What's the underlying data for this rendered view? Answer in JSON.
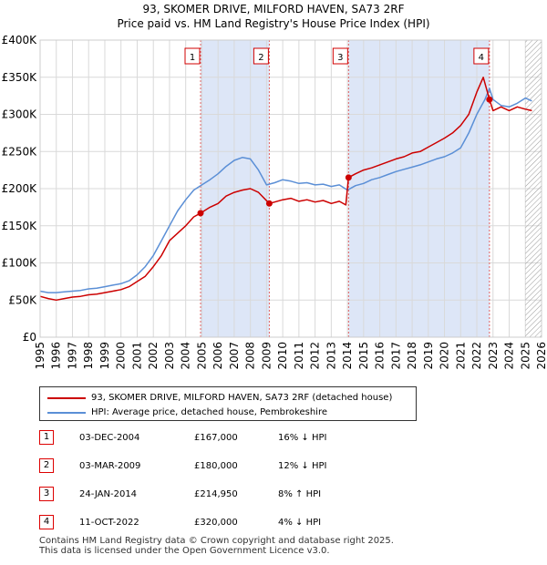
{
  "title_line1": "93, SKOMER DRIVE, MILFORD HAVEN, SA73 2RF",
  "title_line2": "Price paid vs. HM Land Registry's House Price Index (HPI)",
  "colors": {
    "property": "#cc0000",
    "hpi": "#5b8fd6",
    "band": "#dde6f7",
    "marker_border": "#d00000"
  },
  "chart_data": {
    "type": "line",
    "title": "93, SKOMER DRIVE, MILFORD HAVEN, SA73 2RF — Price paid vs. HM Land Registry's House Price Index (HPI)",
    "xlabel": "",
    "ylabel": "",
    "xlim": [
      1995,
      2026
    ],
    "ylim": [
      0,
      400000
    ],
    "x_ticks": [
      1995,
      1996,
      1997,
      1998,
      1999,
      2000,
      2001,
      2002,
      2003,
      2004,
      2005,
      2006,
      2007,
      2008,
      2009,
      2010,
      2011,
      2012,
      2013,
      2014,
      2015,
      2016,
      2017,
      2018,
      2019,
      2020,
      2021,
      2022,
      2023,
      2024,
      2025,
      2026
    ],
    "y_ticks": [
      0,
      50000,
      100000,
      150000,
      200000,
      250000,
      300000,
      350000,
      400000
    ],
    "y_tick_labels": [
      "£0",
      "£50K",
      "£100K",
      "£150K",
      "£200K",
      "£250K",
      "£300K",
      "£350K",
      "£400K"
    ],
    "grid": true,
    "forecast_hatch_from": 2025.0,
    "series": [
      {
        "name": "93, SKOMER DRIVE, MILFORD HAVEN, SA73 2RF (detached house)",
        "x": [
          1995.0,
          1995.5,
          1996.0,
          1996.5,
          1997.0,
          1997.5,
          1998.0,
          1998.5,
          1999.0,
          1999.5,
          2000.0,
          2000.5,
          2001.0,
          2001.5,
          2002.0,
          2002.5,
          2003.0,
          2003.5,
          2004.0,
          2004.5,
          2004.92,
          2005.5,
          2006.0,
          2006.5,
          2007.0,
          2007.5,
          2008.0,
          2008.5,
          2009.17,
          2009.5,
          2010.0,
          2010.5,
          2011.0,
          2011.5,
          2012.0,
          2012.5,
          2013.0,
          2013.5,
          2013.9,
          2014.07,
          2014.5,
          2015.0,
          2015.5,
          2016.0,
          2016.5,
          2017.0,
          2017.5,
          2018.0,
          2018.5,
          2019.0,
          2019.5,
          2020.0,
          2020.5,
          2021.0,
          2021.5,
          2022.0,
          2022.4,
          2022.78,
          2023.0,
          2023.5,
          2024.0,
          2024.5,
          2025.0,
          2025.4
        ],
        "values": [
          55000,
          52000,
          50000,
          52000,
          54000,
          55000,
          57000,
          58000,
          60000,
          62000,
          64000,
          68000,
          75000,
          82000,
          95000,
          110000,
          130000,
          140000,
          150000,
          162000,
          167000,
          175000,
          180000,
          190000,
          195000,
          198000,
          200000,
          195000,
          180000,
          182000,
          185000,
          187000,
          183000,
          185000,
          182000,
          184000,
          180000,
          183000,
          178000,
          214950,
          220000,
          225000,
          228000,
          232000,
          236000,
          240000,
          243000,
          248000,
          250000,
          256000,
          262000,
          268000,
          275000,
          285000,
          300000,
          330000,
          350000,
          320000,
          305000,
          310000,
          305000,
          310000,
          307000,
          305000
        ]
      },
      {
        "name": "HPI: Average price, detached house, Pembrokeshire",
        "x": [
          1995.0,
          1995.5,
          1996.0,
          1996.5,
          1997.0,
          1997.5,
          1998.0,
          1998.5,
          1999.0,
          1999.5,
          2000.0,
          2000.5,
          2001.0,
          2001.5,
          2002.0,
          2002.5,
          2003.0,
          2003.5,
          2004.0,
          2004.5,
          2005.0,
          2005.5,
          2006.0,
          2006.5,
          2007.0,
          2007.5,
          2008.0,
          2008.5,
          2009.0,
          2009.5,
          2010.0,
          2010.5,
          2011.0,
          2011.5,
          2012.0,
          2012.5,
          2013.0,
          2013.5,
          2014.0,
          2014.5,
          2015.0,
          2015.5,
          2016.0,
          2016.5,
          2017.0,
          2017.5,
          2018.0,
          2018.5,
          2019.0,
          2019.5,
          2020.0,
          2020.5,
          2021.0,
          2021.5,
          2022.0,
          2022.5,
          2022.78,
          2023.0,
          2023.5,
          2024.0,
          2024.5,
          2025.0,
          2025.4
        ],
        "values": [
          62000,
          60000,
          60000,
          61000,
          62000,
          63000,
          65000,
          66000,
          68000,
          70000,
          72000,
          76000,
          84000,
          95000,
          110000,
          130000,
          150000,
          170000,
          185000,
          198000,
          205000,
          212000,
          220000,
          230000,
          238000,
          242000,
          240000,
          225000,
          205000,
          208000,
          212000,
          210000,
          207000,
          208000,
          205000,
          206000,
          203000,
          205000,
          198000,
          204000,
          207000,
          212000,
          215000,
          219000,
          223000,
          226000,
          229000,
          232000,
          236000,
          240000,
          243000,
          248000,
          255000,
          275000,
          300000,
          320000,
          335000,
          320000,
          312000,
          310000,
          315000,
          322000,
          318000
        ]
      }
    ],
    "sale_markers": [
      {
        "label": "1",
        "x": 2004.92,
        "price": 167000
      },
      {
        "label": "2",
        "x": 2009.17,
        "price": 180000
      },
      {
        "label": "3",
        "x": 2014.07,
        "price": 214950
      },
      {
        "label": "4",
        "x": 2022.78,
        "price": 320000
      }
    ],
    "shaded_ranges": [
      [
        2004.92,
        2009.17
      ],
      [
        2014.07,
        2022.78
      ]
    ],
    "legend_position": "bottom-left"
  },
  "legend": {
    "property": "93, SKOMER DRIVE, MILFORD HAVEN, SA73 2RF (detached house)",
    "hpi": "HPI: Average price, detached house, Pembrokeshire"
  },
  "sales": [
    {
      "num": "1",
      "date": "03-DEC-2004",
      "price": "£167,000",
      "hpi": "16% ↓ HPI"
    },
    {
      "num": "2",
      "date": "03-MAR-2009",
      "price": "£180,000",
      "hpi": "12% ↓ HPI"
    },
    {
      "num": "3",
      "date": "24-JAN-2014",
      "price": "£214,950",
      "hpi": "8% ↑ HPI"
    },
    {
      "num": "4",
      "date": "11-OCT-2022",
      "price": "£320,000",
      "hpi": "4% ↓ HPI"
    }
  ],
  "footer_line1": "Contains HM Land Registry data © Crown copyright and database right 2025.",
  "footer_line2": "This data is licensed under the Open Government Licence v3.0."
}
